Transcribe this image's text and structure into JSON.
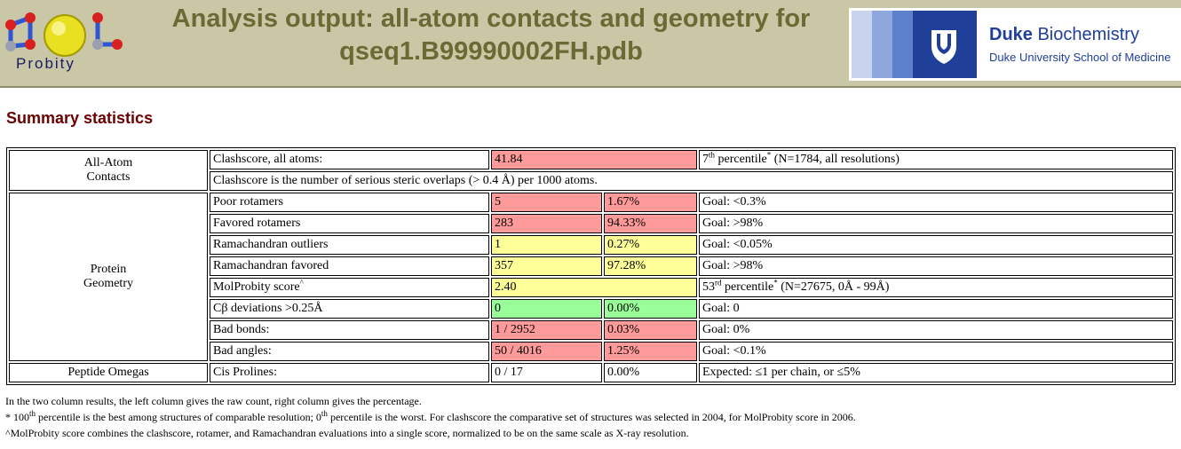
{
  "header": {
    "logo_text": "Probity",
    "title_line1": "Analysis output: all-atom contacts and geometry for",
    "title_line2": "qseq1.B99990002FH.pdb",
    "duke_name_bold": "Duke",
    "duke_name_rest": "Biochemistry",
    "duke_subtitle": "Duke University School of Medicine",
    "colors": {
      "header_bg": "#c9c7a6",
      "title": "#6b6a35",
      "duke_blue": "#1f3f99"
    }
  },
  "summary": {
    "title": "Summary statistics",
    "all_atom": {
      "group_line1": "All-Atom",
      "group_line2": "Contacts",
      "clashscore_label": "Clashscore, all atoms:",
      "clashscore_value": "41.84",
      "clashscore_pct_num": "7",
      "clashscore_pct_sup": "th",
      "clashscore_pct_text": " percentile",
      "clashscore_pct_star": "*",
      "clashscore_pct_tail": " (N=1784, all resolutions)",
      "clashscore_note": "Clashscore is the number of serious steric overlaps (> 0.4 Å) per 1000 atoms."
    },
    "protein": {
      "group_line1": "Protein",
      "group_line2": "Geometry",
      "rows": [
        {
          "label": "Poor rotamers",
          "count": "5",
          "pct": "1.67%",
          "goal": "Goal: <0.3%"
        },
        {
          "label": "Favored rotamers",
          "count": "283",
          "pct": "94.33%",
          "goal": "Goal: >98%"
        },
        {
          "label": "Ramachandran outliers",
          "count": "1",
          "pct": "0.27%",
          "goal": "Goal: <0.05%"
        },
        {
          "label": "Ramachandran favored",
          "count": "357",
          "pct": "97.28%",
          "goal": "Goal: >98%"
        }
      ],
      "molprobity": {
        "label": "MolProbity score",
        "label_sup": "^",
        "value": "2.40",
        "pct_num": "53",
        "pct_sup": "rd",
        "pct_text": " percentile",
        "pct_star": "*",
        "pct_tail": " (N=27675, 0Å - 99Å)"
      },
      "rows2": [
        {
          "label": "Cβ deviations >0.25Å",
          "count": "0",
          "pct": "0.00%",
          "goal": "Goal: 0"
        },
        {
          "label": "Bad bonds:",
          "count": "1 / 2952",
          "pct": "0.03%",
          "goal": "Goal: 0%"
        },
        {
          "label": "Bad angles:",
          "count": "50 / 4016",
          "pct": "1.25%",
          "goal": "Goal: <0.1%"
        }
      ]
    },
    "omegas": {
      "group": "Peptide Omegas",
      "label": "Cis Prolines:",
      "count": "0 / 17",
      "pct": "0.00%",
      "goal": "Expected: ≤1 per chain, or ≤5%"
    },
    "colors": {
      "bad": "#ff9a9a",
      "warn": "#ffff99",
      "good": "#99ff99"
    }
  },
  "notes": {
    "line1": "In the two column results, the left column gives the raw count, right column gives the percentage.",
    "line2_star": "* 100",
    "line2_sup1": "th",
    "line2_mid": " percentile is the best among structures of comparable resolution; 0",
    "line2_sup2": "th",
    "line2_tail": " percentile is the worst. For clashscore the comparative set of structures was selected in 2004, for MolProbity score in 2006.",
    "line3": "^MolProbity score combines the clashscore, rotamer, and Ramachandran evaluations into a single score, normalized to be on the same scale as X-ray resolution."
  }
}
